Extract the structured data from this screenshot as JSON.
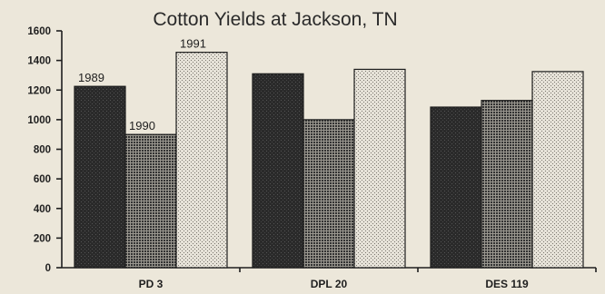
{
  "chart_data": {
    "type": "bar",
    "title": "Cotton Yields at Jackson, TN",
    "xlabel": "",
    "ylabel": "",
    "ylim": [
      0,
      1600
    ],
    "yticks": [
      0,
      200,
      400,
      600,
      800,
      1000,
      1200,
      1400,
      1600
    ],
    "categories": [
      "PD 3",
      "DPL 20",
      "DES 119"
    ],
    "series": [
      {
        "name": "1989",
        "values": [
          1225,
          1310,
          1085
        ],
        "pattern": "solid-dark",
        "color": "#2b2b2b"
      },
      {
        "name": "1990",
        "values": [
          900,
          1000,
          1130
        ],
        "pattern": "dense-grid",
        "color": "#4a4a4a"
      },
      {
        "name": "1991",
        "values": [
          1455,
          1340,
          1325
        ],
        "pattern": "light-stipple",
        "color": "#d8d4cb"
      }
    ],
    "series_labels_shown_on": "PD 3",
    "grid": false,
    "legend": "none"
  }
}
